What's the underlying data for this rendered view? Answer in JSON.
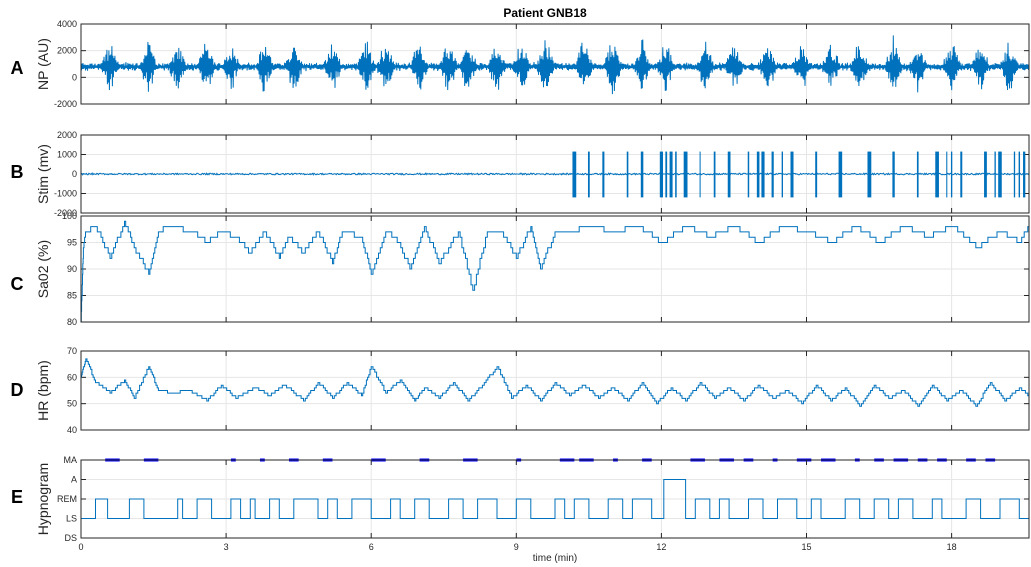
{
  "title": "Patient GNB18",
  "xlabel": "time (min)",
  "x_ticks": [
    "0",
    "3",
    "6",
    "9",
    "12",
    "15",
    "18"
  ],
  "colors": {
    "trace": "#0072BD",
    "micro_arousal": "#0000FF",
    "grid": "#e6e6e6",
    "axis": "#262626"
  },
  "chart_data": [
    {
      "panel": "A",
      "type": "line",
      "ylabel": "NP (AU)",
      "yticks": [
        "-2000",
        "0",
        "2000",
        "4000"
      ],
      "xlim": [
        0,
        19.6
      ],
      "ylim": [
        -2000,
        4000
      ],
      "grid": true,
      "series": [
        {
          "baseline": 800,
          "noise_amplitude": 250,
          "breath_bursts_min": [
            0.6,
            1.4,
            2.0,
            2.6,
            3.1,
            3.8,
            4.4,
            5.2,
            5.9,
            6.3,
            7.0,
            7.6,
            8.0,
            8.6,
            9.1,
            9.6,
            10.4,
            11.0,
            11.6,
            12.1,
            12.9,
            13.5,
            14.2,
            14.9,
            15.5,
            16.1,
            16.8,
            17.3,
            18.0,
            18.6,
            19.2
          ],
          "burst_peak": 3000,
          "burst_trough": -200
        }
      ]
    },
    {
      "panel": "B",
      "type": "line",
      "ylabel": "Stim (mv)",
      "yticks": [
        "-2000",
        "-1000",
        "0",
        "1000",
        "2000"
      ],
      "xlim": [
        0,
        19.6
      ],
      "ylim": [
        -2000,
        2000
      ],
      "grid": true,
      "series": [
        {
          "baseline": 0,
          "stim_amplitude": [
            -1200,
            1150
          ],
          "stim_start_min": 9.6,
          "stim_bursts_min": [
            10.2,
            10.5,
            10.8,
            11.3,
            11.6,
            12.0,
            12.1,
            12.2,
            12.3,
            12.5,
            12.8,
            13.1,
            13.4,
            13.8,
            14.0,
            14.1,
            14.3,
            14.5,
            14.7,
            15.2,
            15.7,
            16.3,
            16.8,
            17.3,
            17.7,
            17.9,
            18.0,
            18.2,
            18.7,
            18.9,
            19.0,
            19.3,
            19.4,
            19.5
          ]
        }
      ]
    },
    {
      "panel": "C",
      "type": "line",
      "ylabel": "Sa02 (%)",
      "yticks": [
        "80",
        "85",
        "90",
        "95",
        "100"
      ],
      "xlim": [
        0,
        19.6
      ],
      "ylim": [
        80,
        100
      ],
      "grid": true,
      "series": [
        {
          "x": [
            0,
            0.05,
            0.1,
            0.3,
            0.6,
            0.9,
            1.1,
            1.4,
            1.6,
            1.8,
            2.3,
            2.6,
            2.9,
            3.2,
            3.5,
            3.8,
            4.1,
            4.3,
            4.6,
            4.9,
            5.2,
            5.4,
            5.8,
            6.0,
            6.3,
            6.5,
            6.8,
            7.1,
            7.4,
            7.8,
            8.1,
            8.4,
            8.7,
            9.0,
            9.3,
            9.5,
            9.8,
            10.1,
            10.5,
            11.0,
            11.5,
            12.0,
            12.5,
            13.0,
            13.5,
            14.0,
            14.5,
            15.0,
            15.5,
            16.0,
            16.5,
            17.0,
            17.5,
            18.0,
            18.5,
            19.0,
            19.4,
            19.6
          ],
          "y": [
            80,
            94,
            97,
            98,
            92,
            99,
            94,
            89,
            97,
            98,
            97,
            95,
            97,
            96,
            93,
            97,
            92,
            96,
            93,
            97,
            91,
            97,
            96,
            89,
            97,
            96,
            90,
            98,
            91,
            97,
            86,
            97,
            97,
            92,
            98,
            90,
            97,
            97,
            98,
            97,
            98,
            95,
            98,
            96,
            98,
            95,
            98,
            97,
            95,
            98,
            95,
            98,
            96,
            98,
            94,
            97,
            95,
            98
          ],
          "step": true
        }
      ]
    },
    {
      "panel": "D",
      "type": "line",
      "ylabel": "HR (bpm)",
      "yticks": [
        "40",
        "50",
        "60",
        "70"
      ],
      "xlim": [
        0,
        19.6
      ],
      "ylim": [
        40,
        70
      ],
      "grid": true,
      "series": [
        {
          "x": [
            0,
            0.1,
            0.3,
            0.6,
            0.9,
            1.1,
            1.4,
            1.6,
            1.9,
            2.2,
            2.6,
            2.9,
            3.2,
            3.6,
            3.9,
            4.2,
            4.6,
            4.9,
            5.2,
            5.5,
            5.8,
            6.0,
            6.3,
            6.6,
            6.9,
            7.1,
            7.4,
            7.7,
            8.0,
            8.3,
            8.6,
            8.9,
            9.2,
            9.5,
            9.8,
            10.1,
            10.4,
            10.7,
            11.0,
            11.3,
            11.6,
            11.9,
            12.2,
            12.5,
            12.8,
            13.1,
            13.4,
            13.7,
            14.0,
            14.3,
            14.6,
            14.9,
            15.2,
            15.5,
            15.8,
            16.1,
            16.4,
            16.7,
            17.0,
            17.3,
            17.6,
            17.9,
            18.2,
            18.5,
            18.8,
            19.1,
            19.4,
            19.6
          ],
          "y": [
            60,
            67,
            58,
            54,
            59,
            52,
            64,
            55,
            54,
            55,
            51,
            57,
            52,
            56,
            53,
            57,
            51,
            58,
            52,
            58,
            53,
            64,
            54,
            59,
            51,
            56,
            52,
            58,
            51,
            57,
            64,
            52,
            57,
            51,
            58,
            53,
            57,
            52,
            56,
            51,
            58,
            50,
            56,
            51,
            58,
            52,
            56,
            51,
            57,
            52,
            55,
            50,
            57,
            51,
            56,
            49,
            57,
            52,
            55,
            49,
            57,
            51,
            55,
            49,
            58,
            51,
            56,
            53
          ],
          "step": true
        }
      ]
    },
    {
      "panel": "E",
      "type": "line",
      "ylabel": "Hypnogram",
      "yticks": [
        "DS",
        "LS",
        "REM",
        "A",
        "MA"
      ],
      "xlim": [
        0,
        19.6
      ],
      "ylim": [
        0,
        4
      ],
      "grid": true,
      "series": [
        {
          "name": "",
          "x": [
            0,
            0.3,
            0.55,
            1.0,
            1.3,
            2.0,
            2.1,
            2.4,
            2.7,
            3.1,
            3.3,
            3.5,
            3.6,
            3.9,
            4.1,
            4.4,
            4.9,
            5.1,
            5.3,
            5.6,
            6.0,
            6.4,
            6.6,
            6.9,
            7.2,
            7.6,
            7.9,
            8.2,
            8.6,
            9.0,
            9.3,
            9.8,
            10.0,
            10.2,
            10.5,
            10.9,
            11.2,
            11.4,
            11.8,
            12.05,
            12.5,
            12.7,
            13.0,
            13.2,
            13.4,
            13.8,
            14.1,
            14.4,
            14.8,
            15.1,
            15.3,
            15.8,
            16.1,
            16.4,
            16.7,
            16.9,
            17.2,
            17.6,
            17.8,
            18.3,
            18.6,
            19.0,
            19.4,
            19.6
          ],
          "y": [
            1,
            2,
            1,
            2,
            1,
            2,
            1,
            2,
            1,
            2,
            1,
            2,
            1,
            2,
            1,
            2,
            1,
            2,
            1,
            2,
            1,
            2,
            1,
            2,
            1,
            2,
            1,
            2,
            1,
            2,
            1,
            2,
            1,
            2,
            1,
            2,
            1,
            2,
            1,
            3,
            1,
            2,
            1,
            2,
            1,
            2,
            1,
            2,
            1,
            2,
            1,
            2,
            1,
            2,
            1,
            2,
            1,
            2,
            1,
            2,
            1,
            2,
            1,
            2
          ],
          "step": true
        },
        {
          "name": "",
          "marks_min": [
            [
              0.5,
              0.8
            ],
            [
              1.3,
              1.6
            ],
            [
              3.1,
              3.2
            ],
            [
              3.7,
              3.8
            ],
            [
              4.3,
              4.5
            ],
            [
              5.0,
              5.2
            ],
            [
              6.0,
              6.3
            ],
            [
              7.0,
              7.2
            ],
            [
              7.9,
              8.2
            ],
            [
              9.0,
              9.1
            ],
            [
              9.9,
              10.2
            ],
            [
              10.3,
              10.6
            ],
            [
              11.0,
              11.1
            ],
            [
              11.6,
              11.8
            ],
            [
              12.6,
              12.9
            ],
            [
              13.2,
              13.5
            ],
            [
              13.7,
              13.9
            ],
            [
              14.3,
              14.4
            ],
            [
              14.8,
              15.1
            ],
            [
              15.3,
              15.6
            ],
            [
              16.0,
              16.1
            ],
            [
              16.4,
              16.6
            ],
            [
              16.8,
              17.1
            ],
            [
              17.3,
              17.5
            ],
            [
              17.7,
              17.9
            ],
            [
              18.3,
              18.5
            ],
            [
              18.7,
              18.9
            ]
          ],
          "level": "MA"
        }
      ]
    }
  ]
}
